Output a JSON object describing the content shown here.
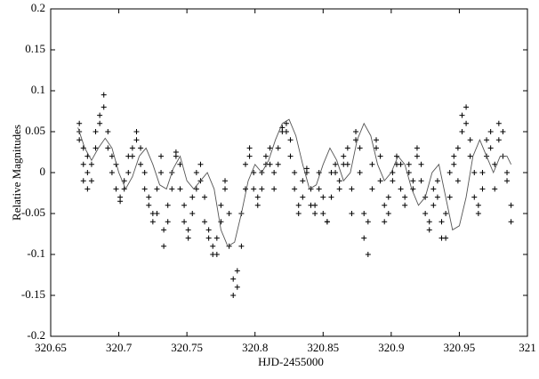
{
  "chart_data": {
    "type": "scatter",
    "xlabel": "HJD-2455000",
    "ylabel": "Relative Magnitudes",
    "xlim": [
      320.65,
      321
    ],
    "ylim": [
      -0.2,
      0.2
    ],
    "xticks": [
      320.65,
      320.7,
      320.75,
      320.8,
      320.85,
      320.9,
      320.95,
      321
    ],
    "yticks": [
      -0.2,
      -0.15,
      -0.1,
      -0.05,
      0,
      0.05,
      0.1,
      0.15,
      0.2
    ],
    "series": [
      {
        "color": "#000000",
        "marker": "plus",
        "x": [
          320.671,
          320.671,
          320.671,
          320.674,
          320.674,
          320.674,
          320.677,
          320.677,
          320.677,
          320.68,
          320.68,
          320.683,
          320.683,
          320.686,
          320.686,
          320.689,
          320.689,
          320.692,
          320.692,
          320.695,
          320.695,
          320.698,
          320.698,
          320.701,
          320.701,
          320.704,
          320.704,
          320.707,
          320.707,
          320.71,
          320.71,
          320.713,
          320.713,
          320.716,
          320.716,
          320.719,
          320.719,
          320.722,
          320.722,
          320.725,
          320.725,
          320.728,
          320.728,
          320.731,
          320.731,
          320.733,
          320.733,
          320.736,
          320.736,
          320.739,
          320.739,
          320.742,
          320.742,
          320.745,
          320.745,
          320.748,
          320.748,
          320.751,
          320.751,
          320.754,
          320.754,
          320.757,
          320.757,
          320.76,
          320.76,
          320.763,
          320.763,
          320.766,
          320.766,
          320.769,
          320.769,
          320.772,
          320.772,
          320.775,
          320.775,
          320.778,
          320.778,
          320.781,
          320.781,
          320.784,
          320.784,
          320.787,
          320.787,
          320.79,
          320.79,
          320.793,
          320.793,
          320.796,
          320.796,
          320.799,
          320.799,
          320.802,
          320.802,
          320.805,
          320.805,
          320.808,
          320.808,
          320.811,
          320.811,
          320.814,
          320.814,
          320.817,
          320.817,
          320.82,
          320.82,
          320.823,
          320.823,
          320.826,
          320.826,
          320.829,
          320.829,
          320.832,
          320.832,
          320.835,
          320.835,
          320.838,
          320.838,
          320.841,
          320.841,
          320.844,
          320.844,
          320.847,
          320.847,
          320.85,
          320.85,
          320.853,
          320.853,
          320.856,
          320.856,
          320.859,
          320.859,
          320.862,
          320.862,
          320.865,
          320.865,
          320.868,
          320.868,
          320.871,
          320.871,
          320.874,
          320.874,
          320.877,
          320.877,
          320.88,
          320.88,
          320.883,
          320.883,
          320.886,
          320.886,
          320.889,
          320.889,
          320.892,
          320.892,
          320.895,
          320.895,
          320.898,
          320.898,
          320.901,
          320.901,
          320.904,
          320.904,
          320.907,
          320.907,
          320.91,
          320.91,
          320.913,
          320.913,
          320.916,
          320.916,
          320.919,
          320.919,
          320.922,
          320.922,
          320.925,
          320.925,
          320.928,
          320.928,
          320.931,
          320.931,
          320.934,
          320.934,
          320.937,
          320.937,
          320.94,
          320.94,
          320.943,
          320.943,
          320.946,
          320.946,
          320.949,
          320.949,
          320.952,
          320.952,
          320.955,
          320.955,
          320.958,
          320.958,
          320.961,
          320.961,
          320.964,
          320.964,
          320.967,
          320.967,
          320.97,
          320.97,
          320.973,
          320.973,
          320.976,
          320.976,
          320.979,
          320.979,
          320.982,
          320.982,
          320.985,
          320.985,
          320.988,
          320.988
        ],
        "values": [
          0.06,
          0.05,
          0.04,
          0.03,
          0.01,
          -0.01,
          0.0,
          -0.02,
          0.02,
          0.01,
          -0.01,
          0.03,
          0.05,
          0.06,
          0.07,
          0.08,
          0.095,
          0.05,
          0.03,
          0.02,
          0.0,
          0.01,
          -0.02,
          -0.03,
          -0.035,
          -0.02,
          -0.01,
          0.0,
          0.02,
          0.03,
          0.02,
          0.04,
          0.05,
          0.03,
          0.01,
          0.0,
          -0.02,
          -0.03,
          -0.04,
          -0.05,
          -0.06,
          -0.05,
          -0.02,
          0.0,
          0.02,
          -0.07,
          -0.09,
          -0.06,
          -0.04,
          -0.02,
          0.0,
          0.02,
          0.025,
          0.01,
          -0.02,
          -0.04,
          -0.06,
          -0.08,
          -0.07,
          -0.05,
          -0.03,
          -0.02,
          0.0,
          0.01,
          -0.01,
          -0.03,
          -0.06,
          -0.07,
          -0.08,
          -0.09,
          -0.1,
          -0.1,
          -0.08,
          -0.06,
          -0.04,
          -0.02,
          -0.01,
          -0.05,
          -0.09,
          -0.13,
          -0.15,
          -0.14,
          -0.12,
          -0.09,
          -0.05,
          -0.02,
          0.01,
          0.03,
          0.02,
          0.0,
          -0.02,
          -0.04,
          -0.03,
          -0.02,
          0.0,
          0.01,
          0.02,
          0.03,
          0.01,
          0.0,
          -0.02,
          0.01,
          0.03,
          0.05,
          0.055,
          0.06,
          0.05,
          0.04,
          0.02,
          0.0,
          -0.02,
          -0.04,
          -0.05,
          -0.03,
          -0.01,
          0.0,
          0.005,
          -0.02,
          -0.04,
          -0.05,
          -0.04,
          -0.02,
          0.0,
          -0.03,
          -0.05,
          -0.06,
          -0.06,
          -0.03,
          0.0,
          0.01,
          0.0,
          -0.02,
          -0.01,
          0.01,
          0.02,
          0.03,
          0.01,
          -0.02,
          -0.05,
          0.04,
          0.05,
          0.03,
          0.0,
          -0.05,
          -0.08,
          -0.1,
          -0.06,
          -0.02,
          0.01,
          0.03,
          0.04,
          0.02,
          -0.01,
          -0.04,
          -0.06,
          -0.03,
          -0.05,
          -0.01,
          0.0,
          0.01,
          0.02,
          0.01,
          -0.02,
          -0.04,
          -0.03,
          0.0,
          0.01,
          -0.02,
          -0.01,
          0.02,
          0.03,
          0.01,
          -0.01,
          -0.03,
          -0.05,
          -0.07,
          -0.06,
          -0.04,
          -0.02,
          -0.01,
          -0.03,
          -0.06,
          -0.08,
          -0.08,
          -0.05,
          -0.03,
          0.0,
          0.02,
          0.01,
          -0.01,
          0.03,
          0.05,
          0.07,
          0.08,
          0.06,
          0.04,
          0.02,
          0.0,
          -0.03,
          -0.05,
          -0.04,
          -0.02,
          0.0,
          0.02,
          0.04,
          0.05,
          0.03,
          0.01,
          -0.02,
          0.04,
          0.06,
          0.05,
          0.02,
          -0.01,
          0.0,
          -0.06,
          -0.04
        ]
      },
      {
        "color": "#555555",
        "marker": "line",
        "x": [
          320.67,
          320.675,
          320.68,
          320.685,
          320.69,
          320.695,
          320.7,
          320.705,
          320.71,
          320.715,
          320.72,
          320.725,
          320.73,
          320.735,
          320.74,
          320.745,
          320.75,
          320.755,
          320.76,
          320.765,
          320.77,
          320.775,
          320.78,
          320.785,
          320.79,
          320.795,
          320.8,
          320.805,
          320.81,
          320.815,
          320.82,
          320.825,
          320.83,
          320.835,
          320.84,
          320.845,
          320.85,
          320.855,
          320.86,
          320.865,
          320.87,
          320.875,
          320.88,
          320.885,
          320.89,
          320.895,
          320.9,
          320.905,
          320.91,
          320.915,
          320.92,
          320.925,
          320.93,
          320.935,
          320.94,
          320.945,
          320.95,
          320.955,
          320.96,
          320.965,
          320.97,
          320.975,
          320.98,
          320.985,
          320.988
        ],
        "values": [
          0.055,
          0.03,
          0.015,
          0.03,
          0.042,
          0.03,
          0.0,
          -0.02,
          -0.005,
          0.02,
          0.03,
          0.01,
          -0.015,
          -0.02,
          0.005,
          0.02,
          -0.01,
          -0.02,
          -0.01,
          0.0,
          -0.02,
          -0.07,
          -0.09,
          -0.085,
          -0.05,
          -0.01,
          0.01,
          0.0,
          0.015,
          0.04,
          0.06,
          0.065,
          0.045,
          0.01,
          -0.02,
          -0.015,
          0.01,
          0.03,
          0.015,
          -0.01,
          0.0,
          0.04,
          0.06,
          0.045,
          0.01,
          -0.01,
          0.0,
          0.02,
          0.01,
          -0.02,
          -0.04,
          -0.03,
          0.0,
          0.01,
          -0.03,
          -0.07,
          -0.065,
          -0.03,
          0.02,
          0.04,
          0.02,
          0.0,
          0.02,
          0.02,
          0.01
        ]
      }
    ]
  }
}
